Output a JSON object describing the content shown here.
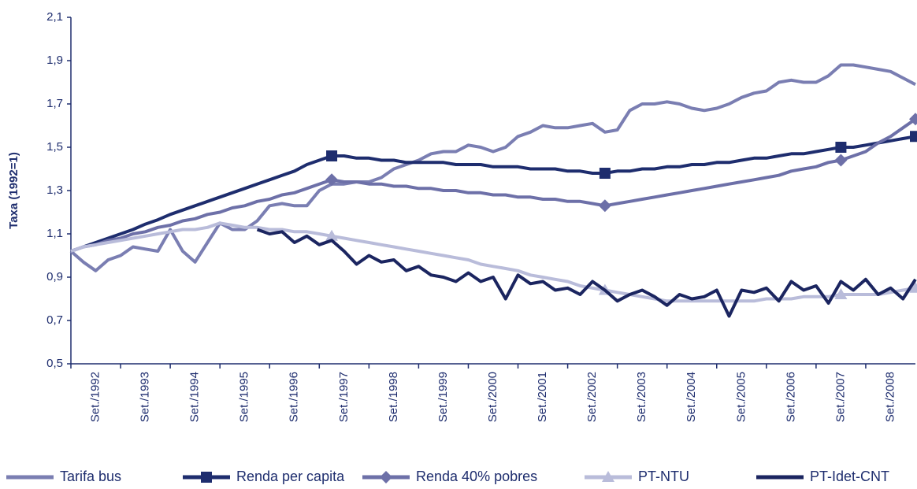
{
  "chart_data": {
    "type": "line",
    "y_label": "Taxa (1992=1)",
    "x": [
      1992,
      1992.25,
      1992.5,
      1992.75,
      1993,
      1993.25,
      1993.5,
      1993.75,
      1994,
      1994.25,
      1994.5,
      1994.75,
      1995,
      1995.25,
      1995.5,
      1995.75,
      1996,
      1996.25,
      1996.5,
      1996.75,
      1997,
      1997.25,
      1997.5,
      1997.75,
      1998,
      1998.25,
      1998.5,
      1998.75,
      1999,
      1999.25,
      1999.5,
      1999.75,
      2000,
      2000.25,
      2000.5,
      2000.75,
      2001,
      2001.25,
      2001.5,
      2001.75,
      2002,
      2002.25,
      2002.5,
      2002.75,
      2003,
      2003.25,
      2003.5,
      2003.75,
      2004,
      2004.25,
      2004.5,
      2004.75,
      2005,
      2005.25,
      2005.5,
      2005.75,
      2006,
      2006.25,
      2006.5,
      2006.75,
      2007,
      2007.25,
      2007.5,
      2007.75,
      2008,
      2008.25,
      2008.5,
      2008.75,
      2009
    ],
    "xlim": [
      1992,
      2009
    ],
    "xticks": [
      {
        "value": 1992.5,
        "label": "Set./1992"
      },
      {
        "value": 1993.5,
        "label": "Set./1993"
      },
      {
        "value": 1994.5,
        "label": "Set./1994"
      },
      {
        "value": 1995.5,
        "label": "Set./1995"
      },
      {
        "value": 1996.5,
        "label": "Set./1996"
      },
      {
        "value": 1997.5,
        "label": "Set./1997"
      },
      {
        "value": 1998.5,
        "label": "Set./1998"
      },
      {
        "value": 1999.5,
        "label": "Set./1999"
      },
      {
        "value": 2000.5,
        "label": "Set./2000"
      },
      {
        "value": 2001.5,
        "label": "Set./2001"
      },
      {
        "value": 2002.5,
        "label": "Set./2002"
      },
      {
        "value": 2003.5,
        "label": "Set./2003"
      },
      {
        "value": 2004.5,
        "label": "Set./2004"
      },
      {
        "value": 2005.5,
        "label": "Set./2005"
      },
      {
        "value": 2006.5,
        "label": "Set./2006"
      },
      {
        "value": 2007.5,
        "label": "Set./2007"
      },
      {
        "value": 2008.5,
        "label": "Set./2008"
      }
    ],
    "ylim": [
      0.5,
      2.1
    ],
    "yticks": [
      {
        "value": 0.5,
        "label": "0,5"
      },
      {
        "value": 0.7,
        "label": "0,7"
      },
      {
        "value": 0.9,
        "label": "0,9"
      },
      {
        "value": 1.1,
        "label": "1,1"
      },
      {
        "value": 1.3,
        "label": "1,3"
      },
      {
        "value": 1.5,
        "label": "1,5"
      },
      {
        "value": 1.7,
        "label": "1,7"
      },
      {
        "value": 1.9,
        "label": "1,9"
      },
      {
        "value": 2.1,
        "label": "2,1"
      }
    ],
    "legend": "bottom",
    "series": [
      {
        "name": "Tarifa bus",
        "color": "#7a7eb2",
        "marker": "none",
        "values": [
          1.02,
          0.97,
          0.93,
          0.98,
          1.0,
          1.04,
          1.03,
          1.02,
          1.12,
          1.02,
          0.97,
          1.06,
          1.15,
          1.12,
          1.12,
          1.16,
          1.23,
          1.24,
          1.23,
          1.23,
          1.3,
          1.33,
          1.33,
          1.34,
          1.34,
          1.36,
          1.4,
          1.42,
          1.44,
          1.47,
          1.48,
          1.48,
          1.51,
          1.5,
          1.48,
          1.5,
          1.55,
          1.57,
          1.6,
          1.59,
          1.59,
          1.6,
          1.61,
          1.57,
          1.58,
          1.67,
          1.7,
          1.7,
          1.71,
          1.7,
          1.68,
          1.67,
          1.68,
          1.7,
          1.73,
          1.75,
          1.76,
          1.8,
          1.81,
          1.8,
          1.8,
          1.83,
          1.88,
          1.88,
          1.87,
          1.86,
          1.85,
          1.82,
          1.79
        ]
      },
      {
        "name": "Renda per capita",
        "color": "#1e2d6e",
        "marker": "square",
        "values": [
          1.02,
          1.04,
          1.06,
          1.08,
          1.1,
          1.12,
          1.145,
          1.165,
          1.19,
          1.21,
          1.23,
          1.25,
          1.27,
          1.29,
          1.31,
          1.33,
          1.35,
          1.37,
          1.39,
          1.42,
          1.44,
          1.46,
          1.46,
          1.45,
          1.45,
          1.44,
          1.44,
          1.43,
          1.43,
          1.43,
          1.43,
          1.42,
          1.42,
          1.42,
          1.41,
          1.41,
          1.41,
          1.4,
          1.4,
          1.4,
          1.39,
          1.39,
          1.38,
          1.38,
          1.39,
          1.39,
          1.4,
          1.4,
          1.41,
          1.41,
          1.42,
          1.42,
          1.43,
          1.43,
          1.44,
          1.45,
          1.45,
          1.46,
          1.47,
          1.47,
          1.48,
          1.49,
          1.5,
          1.5,
          1.51,
          1.52,
          1.53,
          1.54,
          1.55
        ]
      },
      {
        "name": "Renda 40% pobres",
        "color": "#6d70a8",
        "marker": "diamond",
        "values": [
          1.02,
          1.04,
          1.05,
          1.07,
          1.08,
          1.1,
          1.11,
          1.13,
          1.14,
          1.16,
          1.17,
          1.19,
          1.2,
          1.22,
          1.23,
          1.25,
          1.26,
          1.28,
          1.29,
          1.31,
          1.33,
          1.35,
          1.34,
          1.34,
          1.33,
          1.33,
          1.32,
          1.32,
          1.31,
          1.31,
          1.3,
          1.3,
          1.29,
          1.29,
          1.28,
          1.28,
          1.27,
          1.27,
          1.26,
          1.26,
          1.25,
          1.25,
          1.24,
          1.23,
          1.24,
          1.25,
          1.26,
          1.27,
          1.28,
          1.29,
          1.3,
          1.31,
          1.32,
          1.33,
          1.34,
          1.35,
          1.36,
          1.37,
          1.39,
          1.4,
          1.41,
          1.43,
          1.44,
          1.46,
          1.48,
          1.52,
          1.55,
          1.59,
          1.63
        ]
      },
      {
        "name": "PT-NTU",
        "color": "#b9bcda",
        "marker": "triangle",
        "values": [
          1.02,
          1.04,
          1.05,
          1.06,
          1.07,
          1.08,
          1.09,
          1.1,
          1.11,
          1.12,
          1.12,
          1.13,
          1.15,
          1.14,
          1.13,
          1.13,
          1.12,
          1.12,
          1.11,
          1.11,
          1.1,
          1.09,
          1.08,
          1.07,
          1.06,
          1.05,
          1.04,
          1.03,
          1.02,
          1.01,
          1.0,
          0.99,
          0.98,
          0.96,
          0.95,
          0.94,
          0.93,
          0.91,
          0.9,
          0.89,
          0.88,
          0.86,
          0.85,
          0.84,
          0.83,
          0.82,
          0.81,
          0.8,
          0.79,
          0.79,
          0.79,
          0.79,
          0.79,
          0.79,
          0.79,
          0.79,
          0.8,
          0.8,
          0.8,
          0.81,
          0.81,
          0.81,
          0.82,
          0.82,
          0.82,
          0.82,
          0.83,
          0.84,
          0.85
        ]
      },
      {
        "name": "PT-Idet-CNT",
        "color": "#1b2560",
        "marker": "none",
        "values": [
          null,
          null,
          null,
          null,
          null,
          null,
          null,
          null,
          null,
          null,
          null,
          null,
          null,
          null,
          null,
          1.12,
          1.1,
          1.11,
          1.06,
          1.09,
          1.05,
          1.07,
          1.02,
          0.96,
          1.0,
          0.97,
          0.98,
          0.93,
          0.95,
          0.91,
          0.9,
          0.88,
          0.92,
          0.88,
          0.9,
          0.8,
          0.91,
          0.87,
          0.88,
          0.84,
          0.85,
          0.82,
          0.88,
          0.84,
          0.79,
          0.82,
          0.84,
          0.81,
          0.77,
          0.82,
          0.8,
          0.81,
          0.84,
          0.72,
          0.84,
          0.83,
          0.85,
          0.79,
          0.88,
          0.84,
          0.86,
          0.78,
          0.88,
          0.84,
          0.89,
          0.82,
          0.85,
          0.8,
          0.89
        ]
      }
    ]
  }
}
